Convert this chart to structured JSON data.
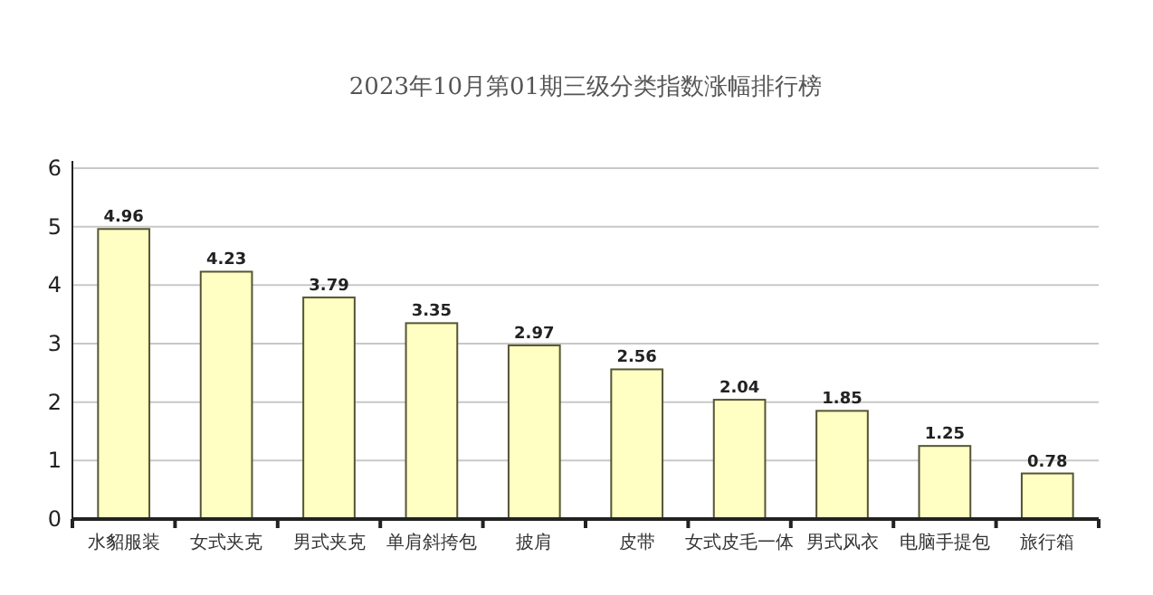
{
  "chart_data": {
    "type": "bar",
    "title": "2023年10月第01期三级分类指数涨幅排行榜",
    "categories": [
      "水貂服装",
      "女式夹克",
      "男式夹克",
      "单肩斜挎包",
      "披肩",
      "皮带",
      "女式皮毛一体",
      "男式风衣",
      "电脑手提包",
      "旅行箱"
    ],
    "values": [
      4.96,
      4.23,
      3.79,
      3.35,
      2.97,
      2.56,
      2.04,
      1.85,
      1.25,
      0.78
    ],
    "color": "#ffffc4",
    "ylim": [
      0,
      6
    ],
    "yticks": [
      0,
      1,
      2,
      3,
      4,
      5,
      6
    ],
    "grid": "y",
    "data_labels": true
  }
}
